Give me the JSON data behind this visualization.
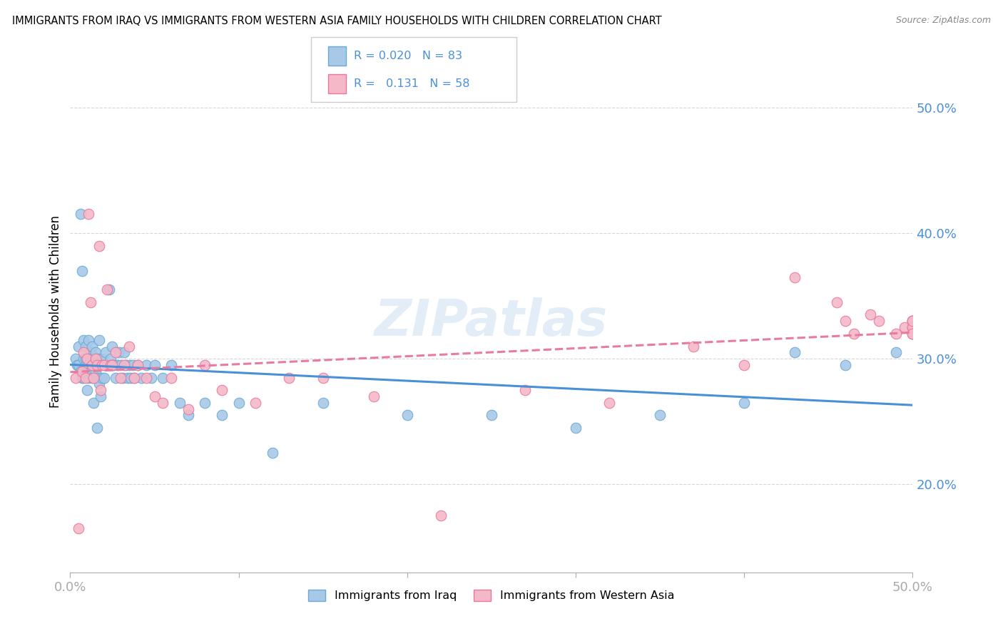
{
  "title": "IMMIGRANTS FROM IRAQ VS IMMIGRANTS FROM WESTERN ASIA FAMILY HOUSEHOLDS WITH CHILDREN CORRELATION CHART",
  "source": "Source: ZipAtlas.com",
  "ylabel": "Family Households with Children",
  "ytick_values": [
    0.2,
    0.3,
    0.4,
    0.5
  ],
  "xlim": [
    0.0,
    0.5
  ],
  "ylim": [
    0.13,
    0.545
  ],
  "r1": "0.020",
  "n1": "83",
  "r2": "0.131",
  "n2": "58",
  "color_iraq": "#a8c8e8",
  "color_western_asia": "#f4b8c8",
  "color_iraq_edge": "#6aaad4",
  "color_western_asia_edge": "#e8789a",
  "color_blue": "#4a90d9",
  "color_pink": "#e87ca0",
  "label_iraq": "Immigrants from Iraq",
  "label_western_asia": "Immigrants from Western Asia",
  "watermark": "ZIPatlas",
  "iraq_x": [
    0.003,
    0.004,
    0.005,
    0.005,
    0.006,
    0.006,
    0.007,
    0.007,
    0.008,
    0.008,
    0.008,
    0.009,
    0.009,
    0.009,
    0.01,
    0.01,
    0.01,
    0.011,
    0.011,
    0.011,
    0.012,
    0.012,
    0.012,
    0.013,
    0.013,
    0.013,
    0.014,
    0.014,
    0.015,
    0.015,
    0.015,
    0.016,
    0.016,
    0.016,
    0.017,
    0.017,
    0.018,
    0.018,
    0.019,
    0.019,
    0.02,
    0.02,
    0.021,
    0.022,
    0.023,
    0.024,
    0.025,
    0.025,
    0.026,
    0.027,
    0.028,
    0.029,
    0.03,
    0.031,
    0.032,
    0.033,
    0.034,
    0.035,
    0.036,
    0.037,
    0.038,
    0.04,
    0.042,
    0.045,
    0.048,
    0.05,
    0.055,
    0.06,
    0.065,
    0.07,
    0.08,
    0.09,
    0.1,
    0.12,
    0.15,
    0.2,
    0.25,
    0.3,
    0.35,
    0.4,
    0.43,
    0.46,
    0.49
  ],
  "iraq_y": [
    0.3,
    0.295,
    0.31,
    0.295,
    0.415,
    0.29,
    0.37,
    0.285,
    0.3,
    0.315,
    0.285,
    0.3,
    0.31,
    0.295,
    0.275,
    0.3,
    0.295,
    0.315,
    0.295,
    0.285,
    0.305,
    0.29,
    0.3,
    0.285,
    0.295,
    0.31,
    0.265,
    0.295,
    0.29,
    0.305,
    0.295,
    0.245,
    0.285,
    0.3,
    0.28,
    0.315,
    0.27,
    0.295,
    0.285,
    0.3,
    0.295,
    0.285,
    0.305,
    0.295,
    0.355,
    0.3,
    0.295,
    0.31,
    0.295,
    0.285,
    0.295,
    0.305,
    0.295,
    0.285,
    0.305,
    0.295,
    0.285,
    0.295,
    0.285,
    0.295,
    0.285,
    0.295,
    0.285,
    0.295,
    0.285,
    0.295,
    0.285,
    0.295,
    0.265,
    0.255,
    0.265,
    0.255,
    0.265,
    0.225,
    0.265,
    0.255,
    0.255,
    0.245,
    0.255,
    0.265,
    0.305,
    0.295,
    0.305
  ],
  "western_x": [
    0.003,
    0.005,
    0.007,
    0.008,
    0.009,
    0.01,
    0.011,
    0.012,
    0.013,
    0.014,
    0.015,
    0.016,
    0.017,
    0.018,
    0.019,
    0.02,
    0.022,
    0.024,
    0.025,
    0.027,
    0.03,
    0.032,
    0.035,
    0.038,
    0.04,
    0.045,
    0.05,
    0.055,
    0.06,
    0.07,
    0.08,
    0.09,
    0.11,
    0.13,
    0.15,
    0.18,
    0.22,
    0.27,
    0.32,
    0.37,
    0.4,
    0.43,
    0.455,
    0.46,
    0.465,
    0.475,
    0.48,
    0.49,
    0.495,
    0.5,
    0.5,
    0.5,
    0.5,
    0.5,
    0.5,
    0.5,
    0.5,
    0.5
  ],
  "western_y": [
    0.285,
    0.165,
    0.29,
    0.305,
    0.285,
    0.3,
    0.415,
    0.345,
    0.295,
    0.285,
    0.3,
    0.295,
    0.39,
    0.275,
    0.295,
    0.295,
    0.355,
    0.295,
    0.295,
    0.305,
    0.285,
    0.295,
    0.31,
    0.285,
    0.295,
    0.285,
    0.27,
    0.265,
    0.285,
    0.26,
    0.295,
    0.275,
    0.265,
    0.285,
    0.285,
    0.27,
    0.175,
    0.275,
    0.265,
    0.31,
    0.295,
    0.365,
    0.345,
    0.33,
    0.32,
    0.335,
    0.33,
    0.32,
    0.325,
    0.33,
    0.32,
    0.33,
    0.325,
    0.32,
    0.33,
    0.325,
    0.32,
    0.33
  ]
}
